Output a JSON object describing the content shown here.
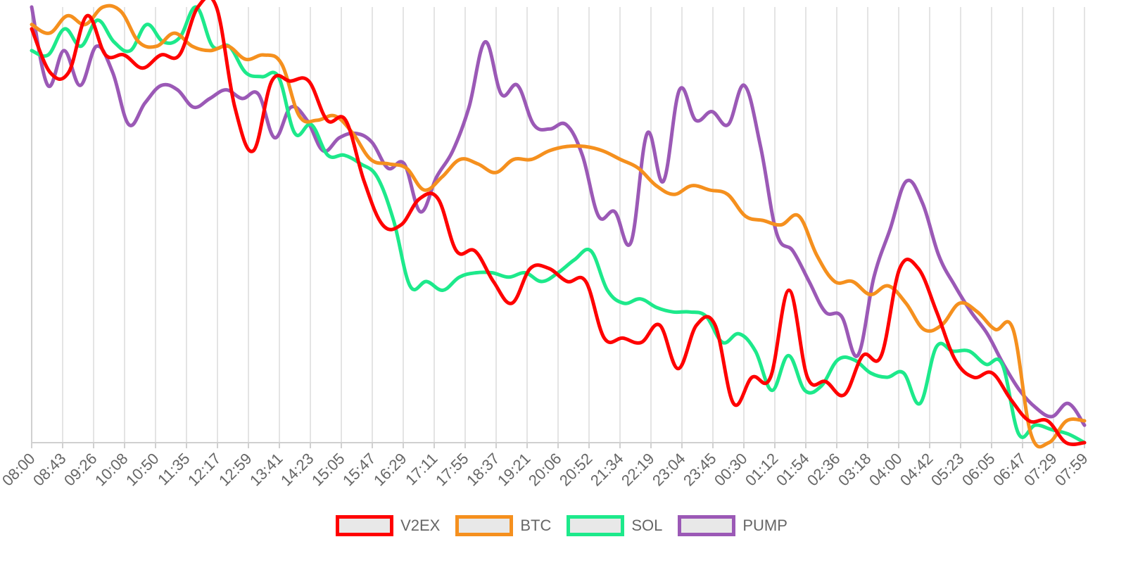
{
  "chart_data": {
    "type": "line",
    "title": "",
    "xlabel": "",
    "ylabel": "",
    "ylim": [
      0,
      100
    ],
    "grid": true,
    "legend": "bottom-center",
    "tick_labels": [
      "08:00",
      "08:43",
      "09:26",
      "10:08",
      "10:50",
      "11:35",
      "12:17",
      "12:59",
      "13:41",
      "14:23",
      "15:05",
      "15:47",
      "16:29",
      "17:11",
      "17:55",
      "18:37",
      "19:21",
      "20:06",
      "20:52",
      "21:34",
      "22:19",
      "23:04",
      "23:45",
      "00:30",
      "01:12",
      "01:54",
      "02:36",
      "03:18",
      "04:00",
      "04:42",
      "05:23",
      "06:05",
      "06:47",
      "07:29",
      "07:59"
    ],
    "series": [
      {
        "name": "V2EX",
        "color": "#ff0000",
        "values": [
          95,
          85,
          85,
          98,
          89,
          89,
          86,
          89,
          89,
          100,
          100,
          77,
          67,
          83,
          83,
          83,
          74,
          74,
          60,
          50,
          50,
          56,
          56,
          44,
          44,
          37,
          32,
          40,
          40,
          37,
          37,
          24,
          24,
          23,
          27,
          17,
          27,
          27,
          9,
          15,
          15,
          35,
          15,
          14,
          11,
          20,
          20,
          40,
          40,
          30,
          19,
          15,
          16,
          10,
          5,
          5,
          0,
          0
        ]
      },
      {
        "name": "BTC",
        "color": "#f5901e",
        "values": [
          96,
          94,
          98,
          96,
          100,
          99,
          92,
          91,
          94,
          91,
          90,
          91,
          88,
          89,
          87,
          75,
          74,
          75,
          71,
          65,
          64,
          63,
          58,
          61,
          65,
          64,
          62,
          65,
          65,
          67,
          68,
          68,
          67,
          65,
          63,
          59,
          57,
          59,
          58,
          57,
          52,
          51,
          50,
          52,
          43,
          37,
          37,
          34,
          36,
          32,
          26,
          27,
          32,
          30,
          26,
          26,
          2,
          0,
          5,
          5
        ]
      },
      {
        "name": "SOL",
        "color": "#1de98b",
        "values": [
          90,
          89,
          95,
          91,
          97,
          92,
          90,
          96,
          92,
          93,
          100,
          91,
          91,
          85,
          84,
          84,
          71,
          73,
          66,
          66,
          64,
          61,
          51,
          36,
          37,
          35,
          38,
          39,
          39,
          38,
          39,
          37,
          39,
          42,
          44,
          35,
          32,
          33,
          31,
          30,
          30,
          29,
          23,
          25,
          21,
          12,
          20,
          12,
          13,
          19,
          19,
          16,
          15,
          16,
          9,
          22,
          21,
          21,
          18,
          18,
          2,
          4,
          3,
          2,
          0
        ]
      },
      {
        "name": "PUMP",
        "color": "#9b59b6",
        "values": [
          100,
          82,
          90,
          82,
          91,
          85,
          73,
          78,
          82,
          81,
          77,
          79,
          81,
          79,
          80,
          70,
          77,
          74,
          67,
          70,
          71,
          69,
          63,
          64,
          53,
          61,
          67,
          77,
          92,
          80,
          82,
          73,
          72,
          73,
          66,
          52,
          53,
          46,
          71,
          60,
          81,
          74,
          76,
          73,
          82,
          68,
          48,
          44,
          37,
          30,
          29,
          20,
          38,
          49,
          60,
          55,
          43,
          36,
          30,
          25,
          18,
          12,
          8,
          6,
          9,
          4
        ]
      }
    ]
  }
}
